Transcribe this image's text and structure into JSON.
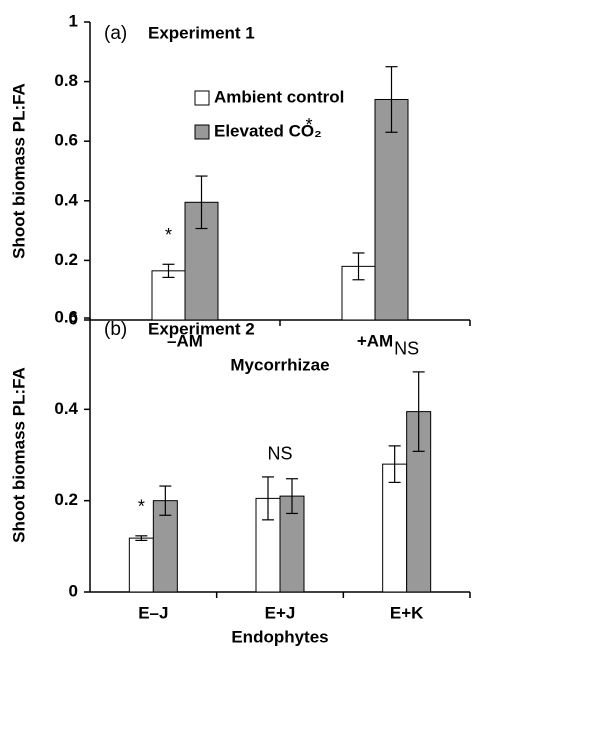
{
  "chart_data": [
    {
      "type": "bar",
      "panel": "(a)",
      "title": "Experiment 1",
      "ylabel": "Shoot biomass PL:FA",
      "xlabel": "Mycorrhizae",
      "categories": [
        "–AM",
        "+AM"
      ],
      "series": [
        {
          "name": "Ambient control",
          "color": "#ffffff",
          "values": [
            0.165,
            0.18
          ],
          "errors": [
            0.022,
            0.045
          ]
        },
        {
          "name": "Elevated CO₂",
          "color": "#999999",
          "values": [
            0.395,
            0.74
          ],
          "errors": [
            0.088,
            0.11
          ]
        }
      ],
      "annotations": [
        "*",
        "*"
      ],
      "ylim": [
        0,
        1
      ],
      "yticks": [
        0,
        0.2,
        0.4,
        0.6,
        0.8,
        1
      ],
      "legend": "top"
    },
    {
      "type": "bar",
      "panel": "(b)",
      "title": "Experiment 2",
      "ylabel": "Shoot biomass PL:FA",
      "xlabel": "Endophytes",
      "categories": [
        "E–J",
        "E+J",
        "E+K"
      ],
      "series": [
        {
          "name": "Ambient control",
          "color": "#ffffff",
          "values": [
            0.118,
            0.205,
            0.28
          ],
          "errors": [
            0.005,
            0.047,
            0.04
          ]
        },
        {
          "name": "Elevated CO₂",
          "color": "#999999",
          "values": [
            0.2,
            0.21,
            0.395
          ],
          "errors": [
            0.032,
            0.038,
            0.087
          ]
        }
      ],
      "annotations": [
        "*",
        "NS",
        "NS"
      ],
      "ylim": [
        0,
        0.6
      ],
      "yticks": [
        0,
        0.2,
        0.4,
        0.6
      ]
    }
  ]
}
